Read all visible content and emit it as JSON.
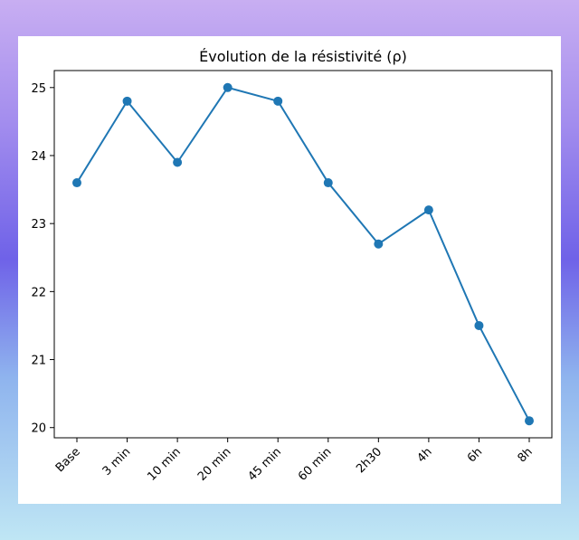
{
  "colors": {
    "line": "#1f77b4",
    "axes": "#000000"
  },
  "chart_data": {
    "type": "line",
    "title": "Évolution de la résistivité (ρ)",
    "xlabel": "",
    "ylabel": "",
    "categories": [
      "Base",
      "3 min",
      "10 min",
      "20 min",
      "45 min",
      "60 min",
      "2h30",
      "4h",
      "6h",
      "8h"
    ],
    "series": [
      {
        "values": [
          23.6,
          24.8,
          23.9,
          25.0,
          24.8,
          23.6,
          22.7,
          23.2,
          21.5,
          20.1
        ]
      }
    ],
    "yticks": [
      20,
      21,
      22,
      23,
      24,
      25
    ],
    "ylim": [
      19.85,
      25.25
    ],
    "grid": false,
    "markers": "circle"
  }
}
